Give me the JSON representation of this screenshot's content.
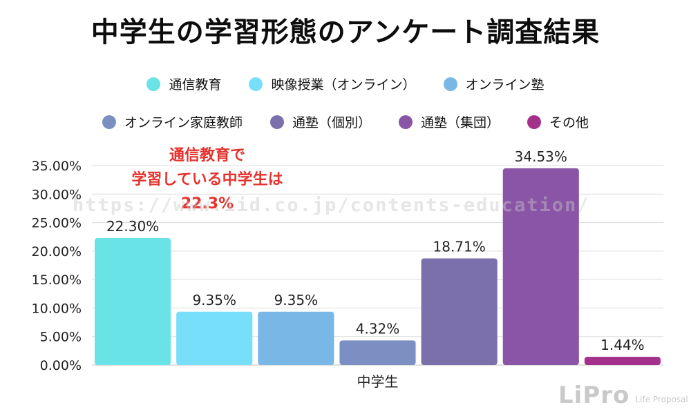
{
  "title": "中学生の学習形態のアンケート調査結果",
  "legend": [
    {
      "label": "通信教育",
      "color": "#6ae3e6"
    },
    {
      "label": "映像授業（オンライン）",
      "color": "#78dffa"
    },
    {
      "label": "オンライン塾",
      "color": "#79b7e6"
    },
    {
      "label": "オンライン家庭教師",
      "color": "#7b8fc3"
    },
    {
      "label": "通塾（個別）",
      "color": "#7b70ac"
    },
    {
      "label": "通塾（集団）",
      "color": "#8a55a6"
    },
    {
      "label": "その他",
      "color": "#a3308a"
    }
  ],
  "annotation": {
    "line1": "通信教育で",
    "line2": "学習している中学生は",
    "line3": "22.3%"
  },
  "watermark": "https://www.iid.co.jp/contents-education/",
  "logo": {
    "mark": "LiPro",
    "sub": "Life Proposal"
  },
  "chart_data": {
    "type": "bar",
    "categories": [
      "中学生"
    ],
    "xlabel": "中学生",
    "ylabel": "",
    "ylim": [
      0,
      35
    ],
    "yticks": [
      "0.00%",
      "5.00%",
      "10.00%",
      "15.00%",
      "20.00%",
      "25.00%",
      "30.00%",
      "35.00%"
    ],
    "grid": true,
    "legend_position": "top",
    "series": [
      {
        "name": "通信教育",
        "values": [
          22.3
        ],
        "label": "22.30%",
        "color": "#6ae3e6"
      },
      {
        "name": "映像授業（オンライン）",
        "values": [
          9.35
        ],
        "label": "9.35%",
        "color": "#78dffa"
      },
      {
        "name": "オンライン塾",
        "values": [
          9.35
        ],
        "label": "9.35%",
        "color": "#79b7e6"
      },
      {
        "name": "オンライン家庭教師",
        "values": [
          4.32
        ],
        "label": "4.32%",
        "color": "#7b8fc3"
      },
      {
        "name": "通塾（個別）",
        "values": [
          18.71
        ],
        "label": "18.71%",
        "color": "#7b70ac"
      },
      {
        "name": "通塾（集団）",
        "values": [
          34.53
        ],
        "label": "34.53%",
        "color": "#8a55a6"
      },
      {
        "name": "その他",
        "values": [
          1.44
        ],
        "label": "1.44%",
        "color": "#a3308a"
      }
    ]
  }
}
